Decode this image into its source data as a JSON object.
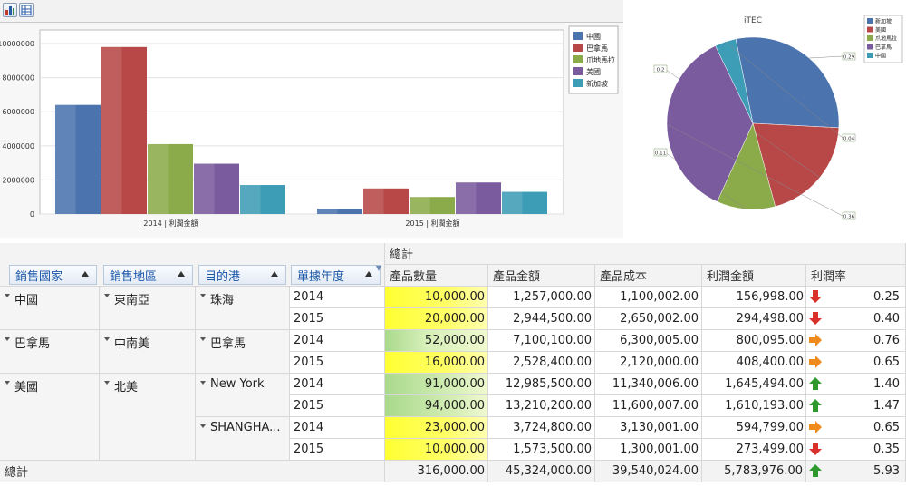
{
  "toolbar": {
    "chart_icon": "bar-chart-icon",
    "grid_icon": "grid-icon"
  },
  "chart_data": [
    {
      "type": "bar",
      "categories": [
        "2014 | 利潤金額",
        "2015 | 利潤金額"
      ],
      "series": [
        {
          "name": "中國",
          "color": "#4b73ad",
          "values": [
            6400000,
            300000
          ]
        },
        {
          "name": "巴拿馬",
          "color": "#b84848",
          "values": [
            9800000,
            1500000
          ]
        },
        {
          "name": "爪地馬拉",
          "color": "#8bab4b",
          "values": [
            4100000,
            1000000
          ]
        },
        {
          "name": "美國",
          "color": "#7a5b9e",
          "values": [
            2950000,
            1850000
          ]
        },
        {
          "name": "新加坡",
          "color": "#3e9db6",
          "values": [
            1700000,
            1300000
          ]
        }
      ],
      "y_ticks": [
        "0",
        "2000000",
        "4000000",
        "6000000",
        "8000000",
        "10000000"
      ],
      "ylim": [
        0,
        10800000
      ],
      "grid": true,
      "legend": "right"
    },
    {
      "type": "pie",
      "title": "iTEC",
      "slices": [
        {
          "name": "新加坡",
          "color": "#4b73ad",
          "value": 0.29,
          "label": "0.29"
        },
        {
          "name": "美國",
          "color": "#b84848",
          "value": 0.2,
          "label": "0.2"
        },
        {
          "name": "爪地馬拉",
          "color": "#8bab4b",
          "value": 0.11,
          "label": "0.11"
        },
        {
          "name": "巴拿馬",
          "color": "#7a5b9e",
          "value": 0.36,
          "label": "0.36"
        },
        {
          "name": "中國",
          "color": "#3e9db6",
          "value": 0.04,
          "label": "0.04"
        }
      ],
      "legend": "top-right"
    }
  ],
  "grid": {
    "corner_label": "總計",
    "row_fields": [
      "銷售國家",
      "銷售地區",
      "目的港",
      "單據年度"
    ],
    "columns": [
      "產品數量",
      "產品金額",
      "產品成本",
      "利潤金額",
      "利潤率"
    ],
    "rows": [
      {
        "country": "中國",
        "region": "東南亞",
        "port": "珠海",
        "year": "2014",
        "qty": "10,000.00",
        "amt": "1,257,000.00",
        "cost": "1,100,002.00",
        "profit": "156,998.00",
        "rate": "0.25",
        "indicator": "down",
        "qty_level": 0.11
      },
      {
        "country": "",
        "region": "",
        "port": "",
        "year": "2015",
        "qty": "20,000.00",
        "amt": "2,944,500.00",
        "cost": "2,650,002.00",
        "profit": "294,498.00",
        "rate": "0.40",
        "indicator": "down",
        "qty_level": 0.21
      },
      {
        "country": "巴拿馬",
        "region": "中南美",
        "port": "巴拿馬",
        "year": "2014",
        "qty": "52,000.00",
        "amt": "7,100,100.00",
        "cost": "6,300,005.00",
        "profit": "800,095.00",
        "rate": "0.76",
        "indicator": "right",
        "qty_level": 0.55
      },
      {
        "country": "",
        "region": "",
        "port": "",
        "year": "2015",
        "qty": "16,000.00",
        "amt": "2,528,400.00",
        "cost": "2,120,000.00",
        "profit": "408,400.00",
        "rate": "0.65",
        "indicator": "right",
        "qty_level": 0.17
      },
      {
        "country": "美國",
        "region": "北美",
        "port": "New York",
        "year": "2014",
        "qty": "91,000.00",
        "amt": "12,985,500.00",
        "cost": "11,340,006.00",
        "profit": "1,645,494.00",
        "rate": "1.40",
        "indicator": "up",
        "qty_level": 0.97
      },
      {
        "country": "",
        "region": "",
        "port": "",
        "year": "2015",
        "qty": "94,000.00",
        "amt": "13,210,200.00",
        "cost": "11,600,007.00",
        "profit": "1,610,193.00",
        "rate": "1.47",
        "indicator": "up",
        "qty_level": 1.0
      },
      {
        "country": "",
        "region": "",
        "port": "SHANGHA...",
        "year": "2014",
        "qty": "23,000.00",
        "amt": "3,724,800.00",
        "cost": "3,130,001.00",
        "profit": "594,799.00",
        "rate": "0.65",
        "indicator": "right",
        "qty_level": 0.24
      },
      {
        "country": "",
        "region": "",
        "port": "",
        "year": "2015",
        "qty": "10,000.00",
        "amt": "1,573,500.00",
        "cost": "1,300,001.00",
        "profit": "273,499.00",
        "rate": "0.35",
        "indicator": "down",
        "qty_level": 0.11
      }
    ],
    "total": {
      "label": "總計",
      "qty": "316,000.00",
      "amt": "45,324,000.00",
      "cost": "39,540,024.00",
      "profit": "5,783,976.00",
      "rate": "5.93",
      "indicator": "up"
    },
    "indicator_colors": {
      "up": "#2e9a2e",
      "right": "#f08a1c",
      "down": "#d9302b"
    }
  }
}
